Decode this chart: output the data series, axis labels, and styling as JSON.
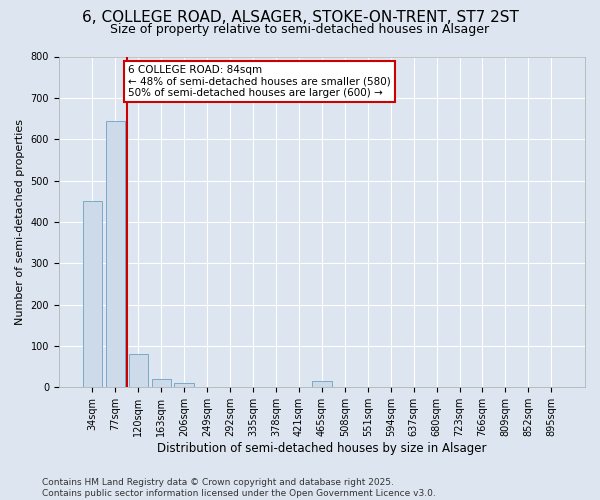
{
  "title": "6, COLLEGE ROAD, ALSAGER, STOKE-ON-TRENT, ST7 2ST",
  "subtitle": "Size of property relative to semi-detached houses in Alsager",
  "xlabel": "Distribution of semi-detached houses by size in Alsager",
  "ylabel": "Number of semi-detached properties",
  "categories": [
    "34sqm",
    "77sqm",
    "120sqm",
    "163sqm",
    "206sqm",
    "249sqm",
    "292sqm",
    "335sqm",
    "378sqm",
    "421sqm",
    "465sqm",
    "508sqm",
    "551sqm",
    "594sqm",
    "637sqm",
    "680sqm",
    "723sqm",
    "766sqm",
    "809sqm",
    "852sqm",
    "895sqm"
  ],
  "values": [
    450,
    645,
    80,
    20,
    10,
    0,
    0,
    0,
    0,
    0,
    15,
    0,
    0,
    0,
    0,
    0,
    0,
    0,
    0,
    0,
    0
  ],
  "bar_color": "#ccdaea",
  "bar_edge_color": "#7aaac8",
  "vline_color": "#cc0000",
  "annotation_text": "6 COLLEGE ROAD: 84sqm\n← 48% of semi-detached houses are smaller (580)\n50% of semi-detached houses are larger (600) →",
  "annotation_box_color": "white",
  "annotation_box_edge_color": "#cc0000",
  "ylim": [
    0,
    800
  ],
  "yticks": [
    0,
    100,
    200,
    300,
    400,
    500,
    600,
    700,
    800
  ],
  "footer": "Contains HM Land Registry data © Crown copyright and database right 2025.\nContains public sector information licensed under the Open Government Licence v3.0.",
  "background_color": "#dde6f0",
  "plot_background_color": "#dde6f0",
  "title_fontsize": 11,
  "subtitle_fontsize": 9,
  "xlabel_fontsize": 8.5,
  "ylabel_fontsize": 8,
  "tick_fontsize": 7,
  "footer_fontsize": 6.5,
  "vline_x": 1.5
}
